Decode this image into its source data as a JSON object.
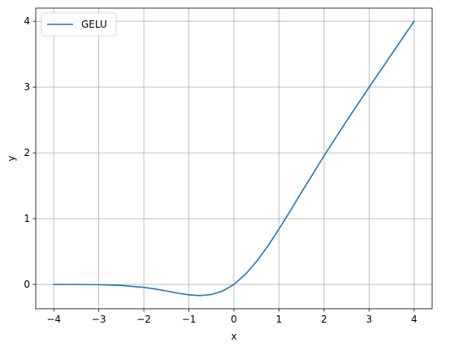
{
  "chart_data": {
    "type": "line",
    "xlabel": "x",
    "ylabel": "y",
    "xlim": [
      -4.4,
      4.4
    ],
    "ylim": [
      -0.37,
      4.2
    ],
    "xticks": [
      -4,
      -3,
      -2,
      -1,
      0,
      1,
      2,
      3,
      4
    ],
    "yticks": [
      0,
      1,
      2,
      3,
      4
    ],
    "xtick_labels": [
      "−4",
      "−3",
      "−2",
      "−1",
      "0",
      "1",
      "2",
      "3",
      "4"
    ],
    "ytick_labels": [
      "0",
      "1",
      "2",
      "3",
      "4"
    ],
    "grid": true,
    "legend_position": "top-left",
    "series": [
      {
        "name": "GELU",
        "color": "#1f77b4",
        "x": [
          -4.0,
          -3.5,
          -3.0,
          -2.5,
          -2.0,
          -1.75,
          -1.5,
          -1.25,
          -1.0,
          -0.75,
          -0.5,
          -0.25,
          0.0,
          0.25,
          0.5,
          0.75,
          1.0,
          1.25,
          1.5,
          2.0,
          2.5,
          3.0,
          3.5,
          4.0
        ],
        "y": [
          0.0,
          -0.001,
          -0.004,
          -0.016,
          -0.045,
          -0.07,
          -0.1,
          -0.132,
          -0.159,
          -0.17,
          -0.154,
          -0.1,
          0.0,
          0.15,
          0.346,
          0.58,
          0.841,
          1.118,
          1.4,
          1.955,
          2.484,
          2.996,
          3.499,
          4.0
        ]
      }
    ]
  }
}
